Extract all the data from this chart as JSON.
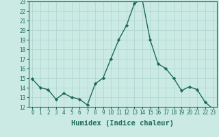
{
  "x": [
    0,
    1,
    2,
    3,
    4,
    5,
    6,
    7,
    8,
    9,
    10,
    11,
    12,
    13,
    14,
    15,
    16,
    17,
    18,
    19,
    20,
    21,
    22,
    23
  ],
  "y": [
    14.9,
    14.0,
    13.8,
    12.8,
    13.4,
    13.0,
    12.8,
    12.2,
    14.4,
    15.0,
    17.0,
    19.0,
    20.5,
    22.8,
    23.2,
    19.0,
    16.5,
    16.0,
    15.0,
    13.7,
    14.1,
    13.8,
    12.5,
    11.8
  ],
  "line_color": "#1a6b5a",
  "marker": "D",
  "markersize": 2.2,
  "linewidth": 1.0,
  "bg_color": "#cceae4",
  "grid_color": "#b0d8d0",
  "xlabel": "Humidex (Indice chaleur)",
  "xlabel_fontsize": 7.5,
  "ylim": [
    12,
    23
  ],
  "xlim": [
    -0.5,
    23.5
  ],
  "yticks": [
    12,
    13,
    14,
    15,
    16,
    17,
    18,
    19,
    20,
    21,
    22,
    23
  ],
  "xticks": [
    0,
    1,
    2,
    3,
    4,
    5,
    6,
    7,
    8,
    9,
    10,
    11,
    12,
    13,
    14,
    15,
    16,
    17,
    18,
    19,
    20,
    21,
    22,
    23
  ],
  "tick_fontsize": 5.5,
  "tick_color": "#1a6b5a",
  "label_color": "#1a6b5a",
  "spine_color": "#1a6b5a"
}
